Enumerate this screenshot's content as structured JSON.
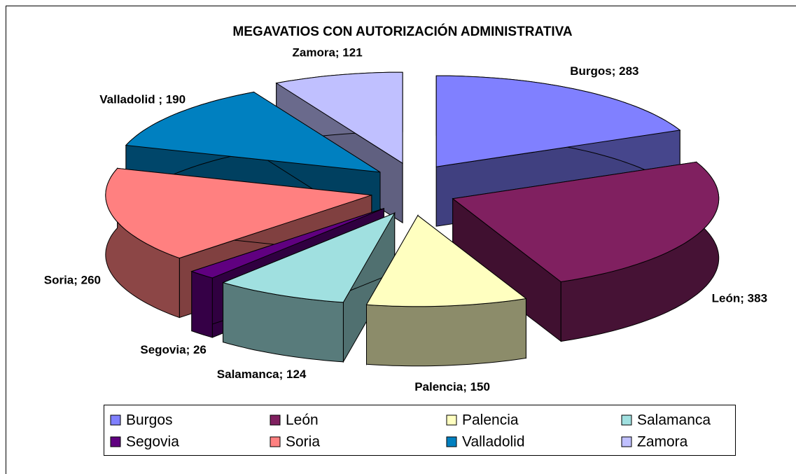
{
  "chart_data": {
    "type": "pie",
    "title": "MEGAVATIOS CON AUTORIZACIÓN ADMINISTRATIVA",
    "categories": [
      "Burgos",
      "León",
      "Palencia",
      "Salamanca",
      "Segovia",
      "Soria",
      "Valladolid",
      "Zamora"
    ],
    "values": [
      283,
      383,
      150,
      124,
      26,
      260,
      190,
      121
    ],
    "value_labels": [
      "Burgos; 283",
      "León; 383",
      "Palencia; 150",
      "Salamanca; 124",
      "Segovia; 26",
      "Soria; 260",
      "Valladolid ; 190",
      "Zamora; 121"
    ],
    "colors": [
      "#8080ff",
      "#802060",
      "#ffffc0",
      "#a0e0e0",
      "#600080",
      "#ff8080",
      "#0080c0",
      "#c0c0ff"
    ],
    "legend": "bottom"
  }
}
